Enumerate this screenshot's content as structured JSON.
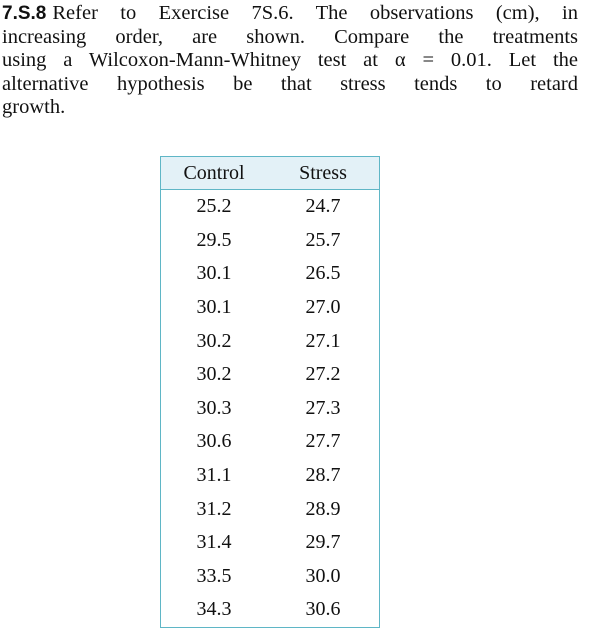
{
  "exercise": {
    "number": "7.S.8",
    "lines": [
      "Refer to Exercise 7S.6. The observations (cm), in",
      "increasing order, are shown. Compare the treatments",
      "using a Wilcoxon-Mann-Whitney test at α = 0.01. Let the",
      "alternative hypothesis be that stress tends to retard",
      "growth."
    ]
  },
  "table": {
    "columns": [
      "Control",
      "Stress"
    ],
    "rows": [
      [
        "25.2",
        "24.7"
      ],
      [
        "29.5",
        "25.7"
      ],
      [
        "30.1",
        "26.5"
      ],
      [
        "30.1",
        "27.0"
      ],
      [
        "30.2",
        "27.1"
      ],
      [
        "30.2",
        "27.2"
      ],
      [
        "30.3",
        "27.3"
      ],
      [
        "30.6",
        "27.7"
      ],
      [
        "31.1",
        "28.7"
      ],
      [
        "31.2",
        "28.9"
      ],
      [
        "31.4",
        "29.7"
      ],
      [
        "33.5",
        "30.0"
      ],
      [
        "34.3",
        "30.6"
      ]
    ]
  }
}
